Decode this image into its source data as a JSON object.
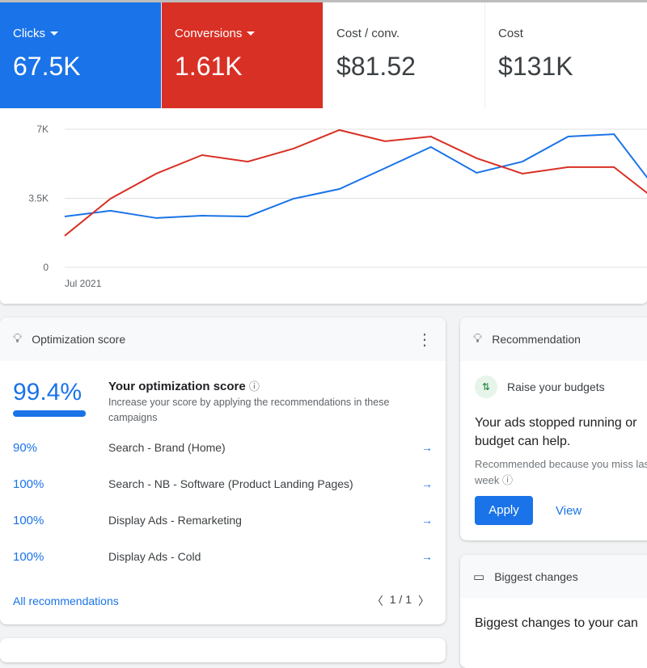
{
  "metrics": [
    {
      "label": "Clicks",
      "value": "67.5K",
      "color": "#1a73e8",
      "dropdown": true
    },
    {
      "label": "Conversions",
      "value": "1.61K",
      "color": "#d93025",
      "dropdown": true
    },
    {
      "label": "Cost / conv.",
      "value": "$81.52"
    },
    {
      "label": "Cost",
      "value": "$131K"
    }
  ],
  "chart_data": {
    "type": "line",
    "y_ticks": [
      "0",
      "3.5K",
      "7K"
    ],
    "ylim": [
      0,
      7000
    ],
    "x_label_first": "Jul 2021",
    "series": [
      {
        "name": "Clicks",
        "color": "#1a73e8",
        "values": [
          2580,
          2870,
          2500,
          2620,
          2580,
          3480,
          3970,
          5030,
          6100,
          4790,
          5360,
          6630,
          6750,
          3720
        ]
      },
      {
        "name": "Conversions",
        "color": "#d93025",
        "values": [
          1600,
          3480,
          4750,
          5690,
          5360,
          6020,
          6960,
          6390,
          6630,
          5530,
          4750,
          5080,
          5080,
          3270
        ]
      }
    ]
  },
  "optimization": {
    "title": "Optimization score",
    "score": "99.4%",
    "score_fraction": 0.994,
    "heading": "Your optimization score",
    "description": "Increase your score by applying the recommendations in these campaigns",
    "campaigns": [
      {
        "pct": "90%",
        "name": "Search - Brand (Home)"
      },
      {
        "pct": "100%",
        "name": "Search - NB - Software (Product Landing Pages)"
      },
      {
        "pct": "100%",
        "name": "Display Ads - Remarketing"
      },
      {
        "pct": "100%",
        "name": "Display Ads - Cold"
      }
    ],
    "all_link": "All recommendations",
    "pager": "1 / 1"
  },
  "recommendation": {
    "title": "Recommendation",
    "subtitle": "Raise your budgets",
    "body": "Your ads stopped running or budget can help.",
    "reason": "Recommended because you miss last week",
    "apply": "Apply",
    "view": "View"
  },
  "changes": {
    "title": "Biggest changes",
    "body": "Biggest changes to your can"
  }
}
